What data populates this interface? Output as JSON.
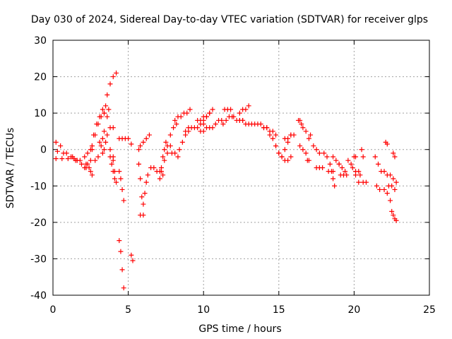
{
  "chart_data": {
    "type": "scatter",
    "title": "Day 030 of 2024, Sidereal Day-to-day VTEC variation (SDTVAR) for receiver glps",
    "xlabel": "GPS time / hours",
    "ylabel": "SDTVAR / TECUs",
    "xlim": [
      0,
      25
    ],
    "ylim": [
      -40,
      30
    ],
    "xticks": [
      0,
      5,
      10,
      15,
      20,
      25
    ],
    "yticks": [
      -40,
      -30,
      -20,
      -10,
      0,
      10,
      20,
      30
    ],
    "xtick_labels": [
      "0",
      "5",
      "10",
      "15",
      "20",
      "25"
    ],
    "ytick_labels": [
      "-40",
      "-30",
      "-20",
      "-10",
      "0",
      "10",
      "20",
      "30"
    ],
    "grid": true,
    "marker": "+",
    "color": "#ff0000",
    "segments": [
      {
        "name": "s1",
        "x": [
          0.2,
          0.5,
          0.9,
          1.3,
          1.5
        ],
        "y": [
          2,
          1,
          -1,
          -2,
          -3
        ]
      },
      {
        "name": "s2",
        "x": [
          0.3,
          0.7,
          1.2,
          1.6
        ],
        "y": [
          -0.5,
          -1,
          -2,
          -3
        ]
      },
      {
        "name": "s3",
        "x": [
          0.2,
          0.6,
          1.0,
          1.4,
          1.8,
          2.2
        ],
        "y": [
          -2.5,
          -2.5,
          -2.5,
          -2.5,
          -3,
          -4
        ]
      },
      {
        "name": "s4",
        "x": [
          1.6,
          1.9,
          2.1,
          2.2
        ],
        "y": [
          -3,
          -4,
          -5,
          -5
        ]
      },
      {
        "name": "s5",
        "x": [
          2.1,
          2.3,
          2.5,
          2.6
        ],
        "y": [
          -2,
          -1,
          0,
          1
        ]
      },
      {
        "name": "s6",
        "x": [
          2.3,
          2.4,
          2.5,
          2.6
        ],
        "y": [
          -4,
          -5,
          -6,
          -7
        ]
      },
      {
        "name": "s7",
        "x": [
          2.5,
          2.6,
          2.8,
          3.0,
          3.2,
          3.4
        ],
        "y": [
          -3,
          0,
          4,
          7,
          9,
          10
        ]
      },
      {
        "name": "s8",
        "x": [
          2.6,
          2.7,
          2.9,
          3.1,
          3.3,
          3.5
        ],
        "y": [
          1,
          4,
          7,
          9,
          11,
          12
        ]
      },
      {
        "name": "s9",
        "x": [
          2.8,
          3.0,
          3.2,
          3.4,
          3.6,
          3.7
        ],
        "y": [
          -3,
          -2,
          1,
          5,
          9,
          11
        ]
      },
      {
        "name": "s10",
        "x": [
          3.3,
          3.4,
          3.6,
          3.8,
          4.0
        ],
        "y": [
          -1,
          0,
          4,
          6,
          6
        ]
      },
      {
        "name": "s11",
        "x": [
          3.4,
          3.6,
          3.8,
          4.0,
          4.2
        ],
        "y": [
          10,
          15,
          18,
          20,
          21
        ]
      },
      {
        "name": "s12",
        "x": [
          3.1,
          3.3,
          3.5,
          3.8,
          4.0
        ],
        "y": [
          2,
          3,
          2,
          0,
          -2
        ]
      },
      {
        "name": "s13",
        "x": [
          3.8,
          3.9,
          4.0,
          4.1
        ],
        "y": [
          -2,
          -4,
          -6,
          -8
        ]
      },
      {
        "name": "s14",
        "x": [
          4.0,
          4.1,
          4.2
        ],
        "y": [
          -3,
          -6,
          -9
        ]
      },
      {
        "name": "s15",
        "x": [
          4.4,
          4.5,
          4.6,
          4.7
        ],
        "y": [
          -6,
          -8,
          -11,
          -14
        ]
      },
      {
        "name": "s16",
        "x": [
          4.4,
          4.6,
          4.8,
          5.0
        ],
        "y": [
          3,
          3,
          3,
          3
        ]
      },
      {
        "name": "s17",
        "x": [
          5.2
        ],
        "y": [
          1.5
        ]
      },
      {
        "name": "s18",
        "x": [
          4.4,
          4.5,
          4.6,
          4.7
        ],
        "y": [
          -25,
          -28,
          -33,
          -38
        ]
      },
      {
        "name": "s19",
        "x": [
          5.2,
          5.3
        ],
        "y": [
          -29,
          -30.5
        ]
      },
      {
        "name": "s20",
        "x": [
          5.7,
          5.8,
          6.0,
          6.2,
          6.4
        ],
        "y": [
          0,
          1,
          2,
          3,
          4
        ]
      },
      {
        "name": "s21",
        "x": [
          5.7,
          5.8,
          5.9,
          6.0
        ],
        "y": [
          -4,
          -8,
          -13,
          -18
        ]
      },
      {
        "name": "s22",
        "x": [
          5.8,
          6.0,
          6.1,
          6.2,
          6.3
        ],
        "y": [
          -18,
          -15,
          -12,
          -9,
          -7
        ]
      },
      {
        "name": "s23",
        "x": [
          6.5,
          6.7,
          6.9,
          7.1,
          7.3
        ],
        "y": [
          -5,
          -5,
          -6,
          -6,
          -7
        ]
      },
      {
        "name": "s24",
        "x": [
          7.1,
          7.2,
          7.3,
          7.4,
          7.5
        ],
        "y": [
          -8,
          -5,
          -2,
          0,
          2
        ]
      },
      {
        "name": "s25",
        "x": [
          7.2,
          7.4,
          7.6,
          7.8
        ],
        "y": [
          -6,
          -3,
          -1,
          1
        ]
      },
      {
        "name": "s26",
        "x": [
          7.6,
          7.8,
          8.0,
          8.2
        ],
        "y": [
          1,
          4,
          6,
          7
        ]
      },
      {
        "name": "s27",
        "x": [
          7.9,
          8.1,
          8.3
        ],
        "y": [
          -1,
          -1,
          -2
        ]
      },
      {
        "name": "s28",
        "x": [
          8.1,
          8.3,
          8.5,
          8.7,
          8.9,
          9.1
        ],
        "y": [
          8,
          9,
          9,
          10,
          10,
          11
        ]
      },
      {
        "name": "s29",
        "x": [
          8.4,
          8.6,
          8.8,
          9.0
        ],
        "y": [
          0,
          2,
          4,
          5
        ]
      },
      {
        "name": "s30",
        "x": [
          8.8,
          9.0,
          9.2,
          9.4,
          9.6,
          9.8,
          10.0
        ],
        "y": [
          5,
          6,
          6,
          6,
          6,
          7,
          7
        ]
      },
      {
        "name": "s31",
        "x": [
          9.6,
          9.8,
          10.0,
          10.2,
          10.4
        ],
        "y": [
          8,
          8,
          9,
          9,
          10
        ]
      },
      {
        "name": "s32",
        "x": [
          9.8,
          10.0,
          10.2,
          10.4
        ],
        "y": [
          5,
          5,
          6,
          6
        ]
      },
      {
        "name": "s33",
        "x": [
          10.0,
          10.2,
          10.4,
          10.6
        ],
        "y": [
          8,
          9,
          10,
          11
        ]
      },
      {
        "name": "s34",
        "x": [
          10.6,
          10.8,
          11.0,
          11.2
        ],
        "y": [
          6,
          7,
          8,
          8
        ]
      },
      {
        "name": "s35",
        "x": [
          11.3,
          11.5,
          11.7,
          11.9
        ],
        "y": [
          7,
          8,
          9,
          9
        ]
      },
      {
        "name": "s36",
        "x": [
          11.4,
          11.6,
          11.8
        ],
        "y": [
          11,
          11,
          11
        ]
      },
      {
        "name": "s37",
        "x": [
          12.0,
          12.2,
          12.4,
          12.6
        ],
        "y": [
          9,
          8,
          8,
          8
        ]
      },
      {
        "name": "s38",
        "x": [
          12.4,
          12.6,
          12.8,
          13.0
        ],
        "y": [
          10,
          11,
          11,
          12
        ]
      },
      {
        "name": "s39",
        "x": [
          12.4,
          12.6,
          12.8,
          13.0,
          13.2
        ],
        "y": [
          8,
          8,
          7,
          7,
          7
        ]
      },
      {
        "name": "s40",
        "x": [
          13.4,
          13.6,
          13.8,
          14.0,
          14.2
        ],
        "y": [
          7,
          7,
          7,
          6,
          6
        ]
      },
      {
        "name": "s41",
        "x": [
          14.0,
          14.2,
          14.4,
          14.6,
          14.8
        ],
        "y": [
          6,
          6,
          5,
          5,
          4
        ]
      },
      {
        "name": "s42",
        "x": [
          14.4,
          14.6,
          14.8,
          15.0
        ],
        "y": [
          4,
          3,
          1,
          -1
        ]
      },
      {
        "name": "s43",
        "x": [
          14.8,
          15.0,
          15.2,
          15.4,
          15.6,
          15.8
        ],
        "y": [
          1,
          -1,
          -2,
          -3,
          -3,
          -2
        ]
      },
      {
        "name": "s44",
        "x": [
          15.2,
          15.4,
          15.6,
          15.8
        ],
        "y": [
          -2,
          0,
          2,
          4
        ]
      },
      {
        "name": "s45",
        "x": [
          15.4,
          15.6,
          15.8,
          16.0
        ],
        "y": [
          3,
          3,
          4,
          4
        ]
      },
      {
        "name": "s46",
        "x": [
          16.3,
          16.4,
          16.5,
          16.6,
          16.8
        ],
        "y": [
          8,
          8,
          7,
          6,
          5
        ]
      },
      {
        "name": "s47",
        "x": [
          16.4,
          16.6,
          16.8
        ],
        "y": [
          1,
          0,
          -1
        ]
      },
      {
        "name": "s48",
        "x": [
          17.0,
          17.1
        ],
        "y": [
          3,
          4
        ]
      },
      {
        "name": "s49",
        "x": [
          16.9,
          17.0
        ],
        "y": [
          -3,
          -3
        ]
      },
      {
        "name": "s50",
        "x": [
          17.3,
          17.5,
          17.7
        ],
        "y": [
          1,
          0,
          -1
        ]
      },
      {
        "name": "s51",
        "x": [
          17.5,
          17.7,
          17.9
        ],
        "y": [
          -5,
          -5,
          -5
        ]
      },
      {
        "name": "s52",
        "x": [
          18.0,
          18.2,
          18.4
        ],
        "y": [
          -1,
          -2,
          -4
        ]
      },
      {
        "name": "s53",
        "x": [
          18.3,
          18.5,
          18.6
        ],
        "y": [
          -6,
          -6,
          -6
        ]
      },
      {
        "name": "s54",
        "x": [
          18.6,
          18.8,
          19.0
        ],
        "y": [
          -2,
          -3,
          -4
        ]
      },
      {
        "name": "s55",
        "x": [
          18.6,
          18.7
        ],
        "y": [
          -8,
          -10
        ]
      },
      {
        "name": "s56",
        "x": [
          19.0,
          19.2,
          19.4
        ],
        "y": [
          -4,
          -5,
          -6
        ]
      },
      {
        "name": "s57",
        "x": [
          19.1,
          19.3,
          19.5
        ],
        "y": [
          -7,
          -7,
          -7
        ]
      },
      {
        "name": "s58",
        "x": [
          19.6,
          19.8
        ],
        "y": [
          -3,
          -4
        ]
      },
      {
        "name": "s59",
        "x": [
          19.9,
          20.1,
          20.3
        ],
        "y": [
          -5,
          -6,
          -6
        ]
      },
      {
        "name": "s60",
        "x": [
          20.1,
          20.3
        ],
        "y": [
          -7,
          -9
        ]
      },
      {
        "name": "s61",
        "x": [
          20.0,
          20.1
        ],
        "y": [
          -2,
          -2
        ]
      },
      {
        "name": "s62",
        "x": [
          20.5,
          20.6
        ],
        "y": [
          0,
          -2
        ]
      },
      {
        "name": "s63",
        "x": [
          20.4,
          20.6,
          20.8
        ],
        "y": [
          -7,
          -9,
          -9
        ]
      },
      {
        "name": "s64",
        "x": [
          21.4,
          21.6
        ],
        "y": [
          -2,
          -4
        ]
      },
      {
        "name": "s65",
        "x": [
          21.8,
          22.0,
          22.2
        ],
        "y": [
          -6,
          -6,
          -7
        ]
      },
      {
        "name": "s66",
        "x": [
          21.5,
          21.7
        ],
        "y": [
          -10,
          -11
        ]
      },
      {
        "name": "s67",
        "x": [
          22.0,
          22.2,
          22.4
        ],
        "y": [
          -11,
          -12,
          -14
        ]
      },
      {
        "name": "s68",
        "x": [
          22.1,
          22.2
        ],
        "y": [
          2,
          1.5
        ]
      },
      {
        "name": "s69",
        "x": [
          22.4,
          22.6,
          22.8
        ],
        "y": [
          -7,
          -8,
          -9
        ]
      },
      {
        "name": "s70",
        "x": [
          22.3,
          22.5,
          22.7
        ],
        "y": [
          -10,
          -10,
          -11
        ]
      },
      {
        "name": "s71",
        "x": [
          22.6,
          22.7
        ],
        "y": [
          -1,
          -2
        ]
      },
      {
        "name": "s72",
        "x": [
          22.5,
          22.6,
          22.7,
          22.8
        ],
        "y": [
          -17,
          -18,
          -19,
          -19.5
        ]
      }
    ]
  }
}
